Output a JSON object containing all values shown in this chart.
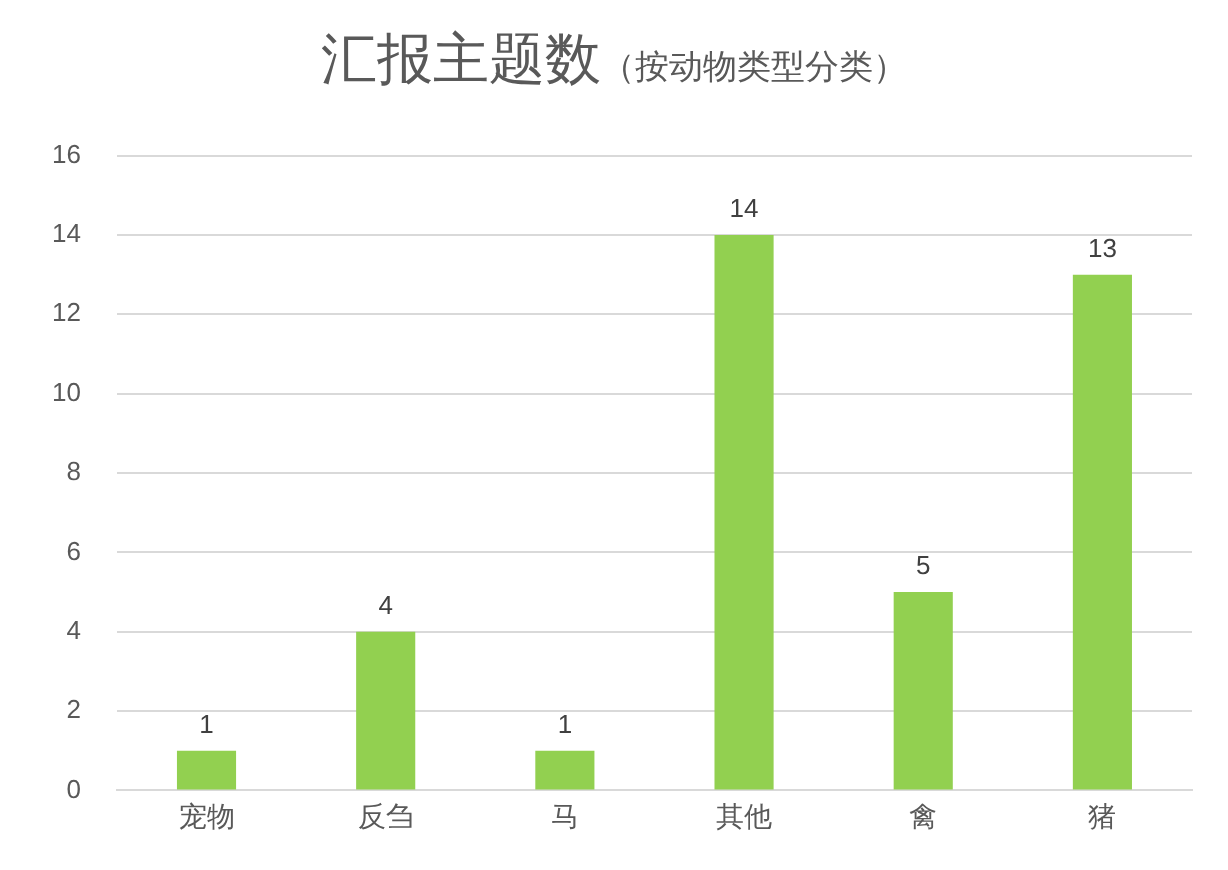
{
  "chart_data": {
    "type": "bar",
    "title": "汇报主题数",
    "subtitle": "（按动物类型分类）",
    "categories": [
      "宠物",
      "反刍",
      "马",
      "其他",
      "禽",
      "猪"
    ],
    "values": [
      1,
      4,
      1,
      14,
      5,
      13
    ],
    "color": "#92d050",
    "ylim": [
      0,
      16
    ],
    "yticks": [
      0,
      2,
      4,
      6,
      8,
      10,
      12,
      14,
      16
    ],
    "grid": "y",
    "data_labels": true,
    "legend": false
  }
}
